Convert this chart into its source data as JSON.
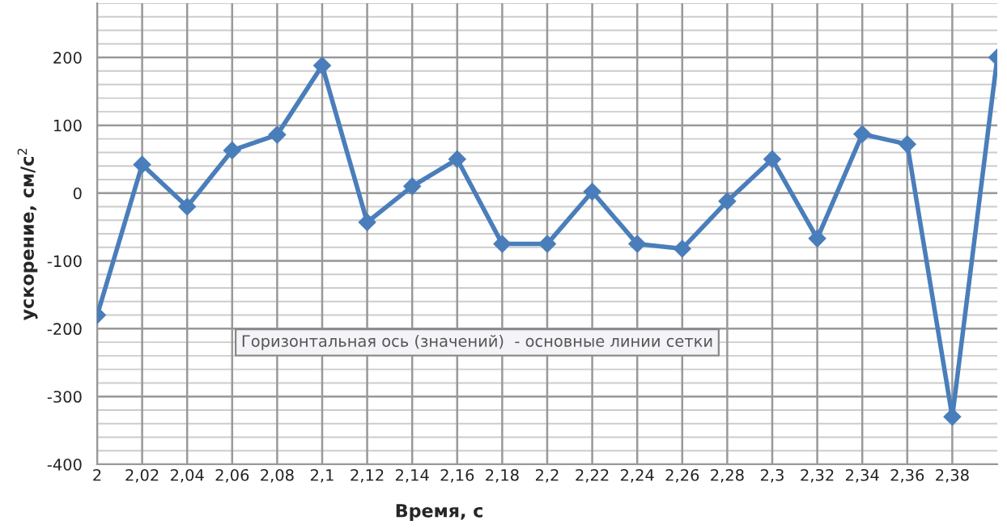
{
  "chart_data": {
    "type": "line",
    "xlabel": "Время, с",
    "ylabel": "ускорение, см/с$^{2}$",
    "x": [
      2,
      2.02,
      2.04,
      2.06,
      2.08,
      2.1,
      2.12,
      2.14,
      2.16,
      2.18,
      2.2,
      2.22,
      2.24,
      2.26,
      2.28,
      2.3,
      2.32,
      2.34,
      2.36,
      2.38,
      2.4
    ],
    "series": [
      {
        "color": "#4a7ebb",
        "values": [
          -180,
          42,
          -20,
          63,
          86,
          188,
          -43,
          10,
          50,
          -75,
          -75,
          2,
          -75,
          -82,
          -12,
          50,
          -67,
          87,
          72,
          -330,
          200
        ]
      }
    ],
    "xlim": [
      2,
      2.4
    ],
    "ylim": [
      -400,
      280
    ],
    "xticks": [
      2,
      {
        "value": 2.02,
        "label": "2,02"
      },
      {
        "value": 2.04,
        "label": "2,04"
      },
      {
        "value": 2.06,
        "label": "2,06"
      },
      {
        "value": 2.08,
        "label": "2,08"
      },
      {
        "value": 2.1,
        "label": "2,1"
      },
      {
        "value": 2.12,
        "label": "2,12"
      },
      {
        "value": 2.14,
        "label": "2,14"
      },
      {
        "value": 2.16,
        "label": "2,16"
      },
      {
        "value": 2.18,
        "label": "2,18"
      },
      {
        "value": 2.2,
        "label": "2,2"
      },
      {
        "value": 2.22,
        "label": "2,22"
      },
      {
        "value": 2.24,
        "label": "2,24"
      },
      {
        "value": 2.26,
        "label": "2,26"
      },
      {
        "value": 2.28,
        "label": "2,28"
      },
      {
        "value": 2.3,
        "label": "2,3"
      },
      {
        "value": 2.32,
        "label": "2,32"
      },
      {
        "value": 2.34,
        "label": "2,34"
      },
      {
        "value": 2.36,
        "label": "2,36"
      },
      {
        "value": 2.38,
        "label": "2,38"
      }
    ],
    "yticks": [
      -400,
      -300,
      -200,
      -100,
      0,
      100,
      200
    ],
    "grid": true,
    "marker": "diamond",
    "line_style": "solid",
    "annotations": [
      "Горизонтальная ось (значений)  - основные линии сетки"
    ]
  }
}
